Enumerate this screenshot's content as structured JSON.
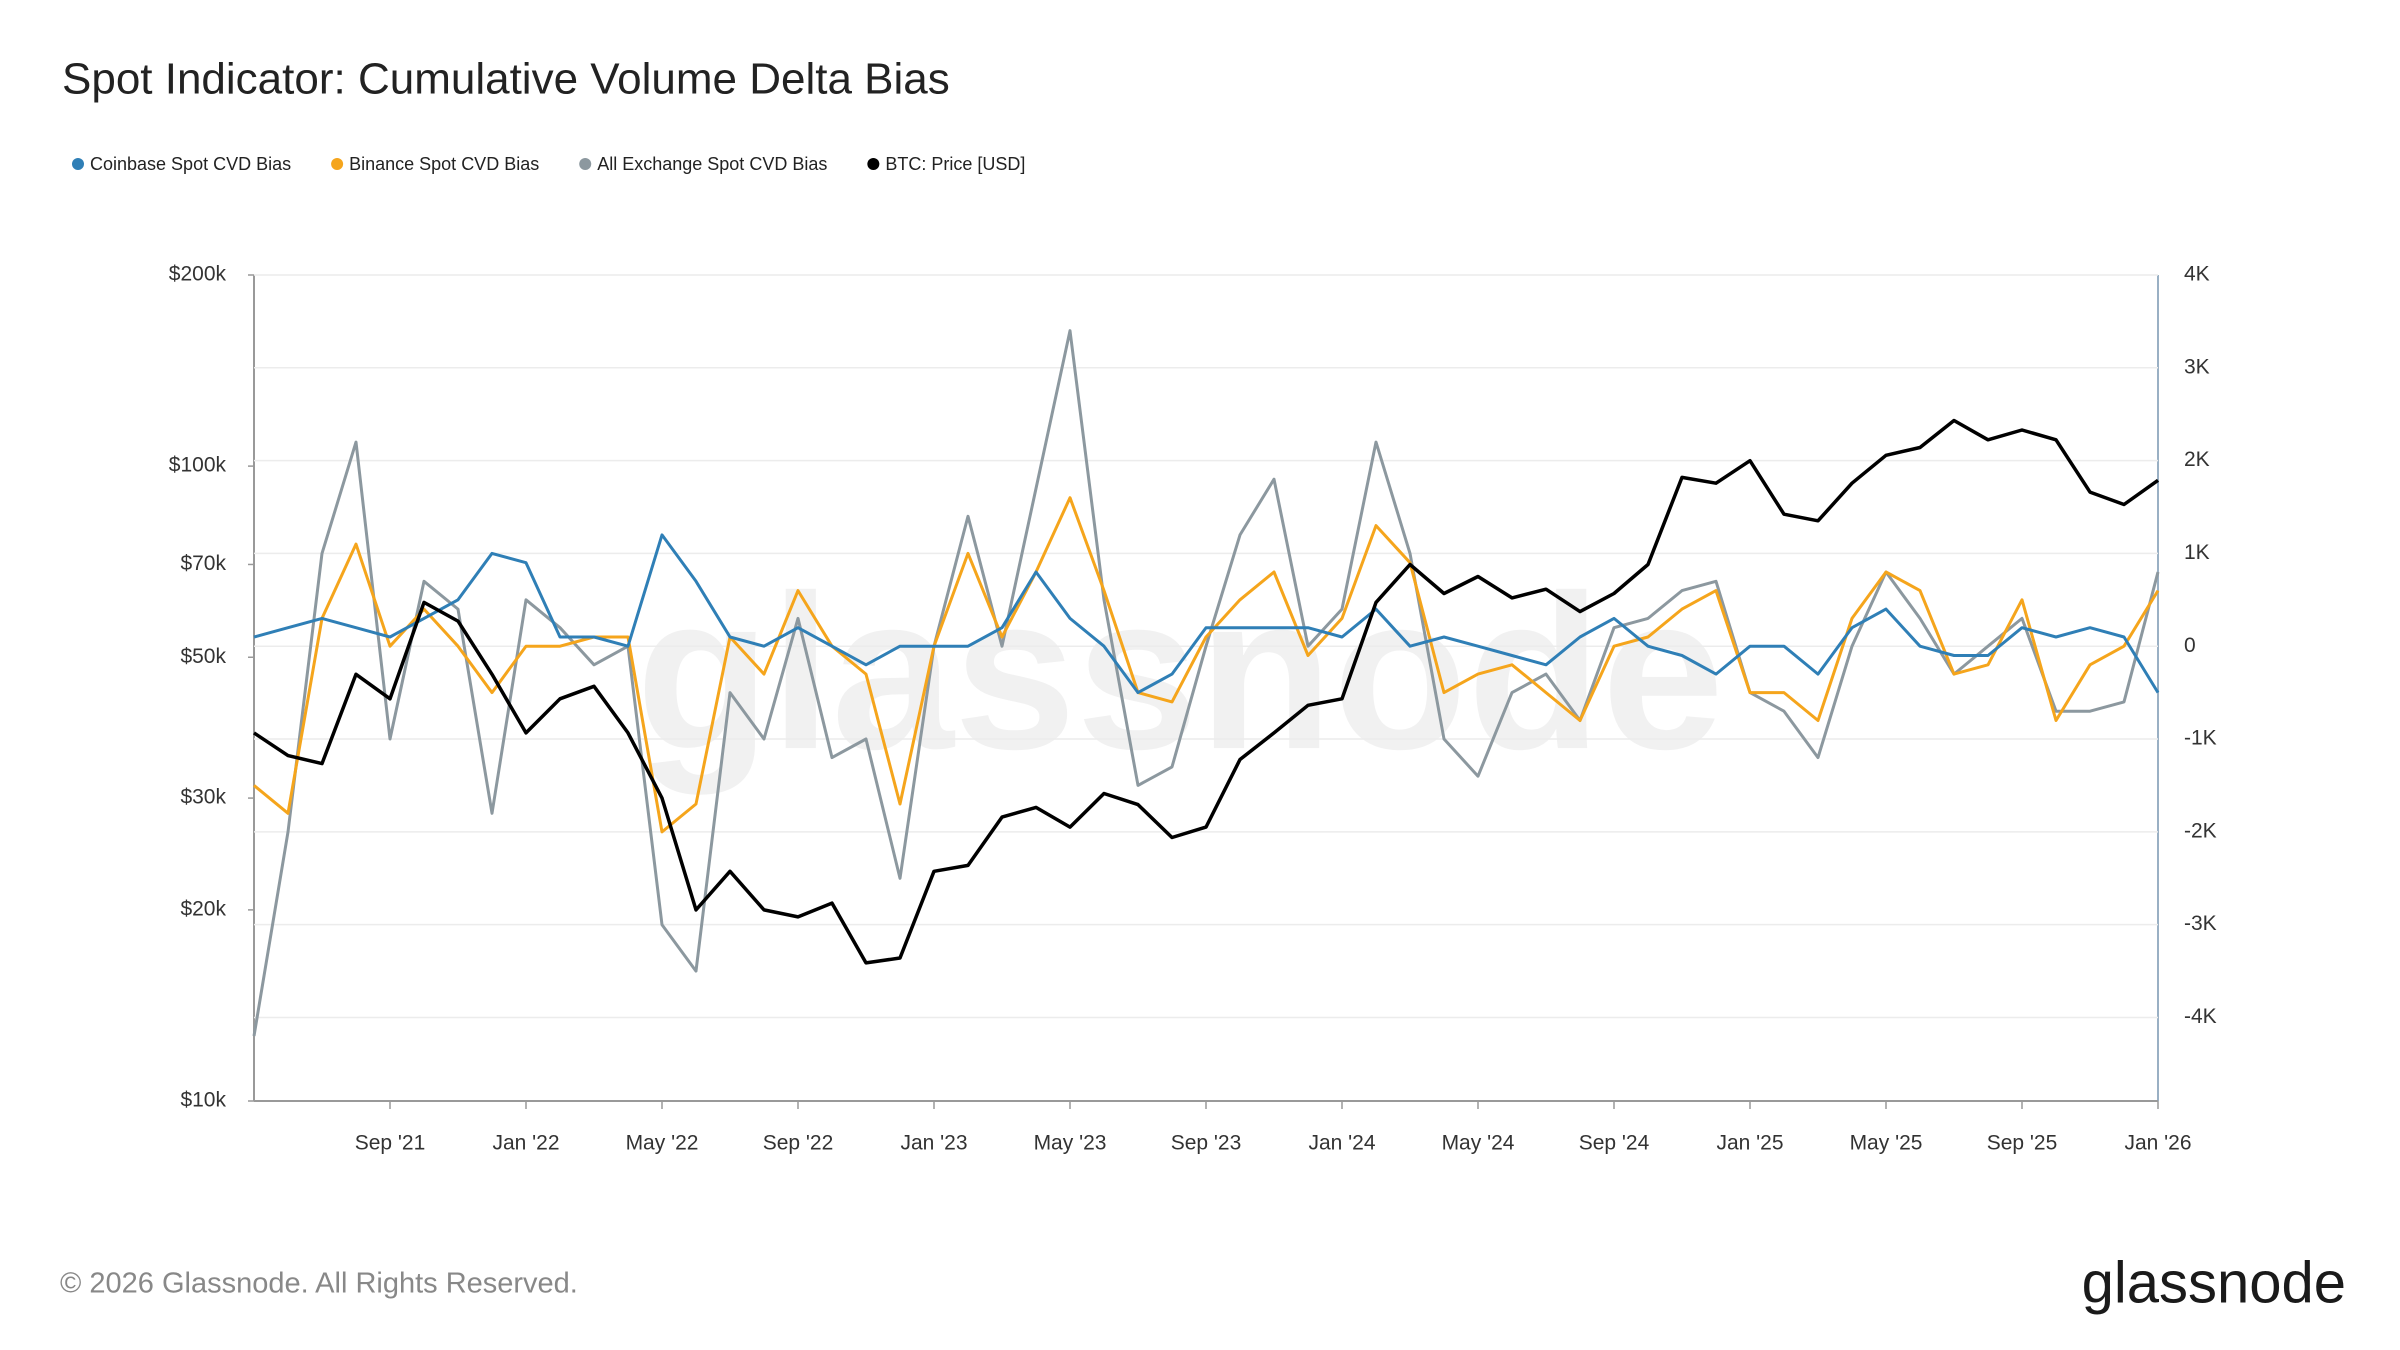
{
  "chart_data": {
    "type": "line",
    "title": "Spot Indicator: Cumulative Volume Delta Bias",
    "footer": "© 2026 Glassnode. All Rights Reserved.",
    "logo": "glassnode",
    "watermark": "glassnode",
    "x": [
      "2021-05",
      "2021-06",
      "2021-07",
      "2021-08",
      "2021-09",
      "2021-10",
      "2021-11",
      "2021-12",
      "2022-01",
      "2022-02",
      "2022-03",
      "2022-04",
      "2022-05",
      "2022-06",
      "2022-07",
      "2022-08",
      "2022-09",
      "2022-10",
      "2022-11",
      "2022-12",
      "2023-01",
      "2023-02",
      "2023-03",
      "2023-04",
      "2023-05",
      "2023-06",
      "2023-07",
      "2023-08",
      "2023-09",
      "2023-10",
      "2023-11",
      "2023-12",
      "2024-01",
      "2024-02",
      "2024-03",
      "2024-04",
      "2024-05",
      "2024-06",
      "2024-07",
      "2024-08",
      "2024-09",
      "2024-10",
      "2024-11",
      "2024-12",
      "2025-01",
      "2025-02",
      "2025-03",
      "2025-04",
      "2025-05",
      "2025-06",
      "2025-07",
      "2025-08",
      "2025-09",
      "2025-10",
      "2025-11",
      "2025-12",
      "2026-01"
    ],
    "xlim": [
      "2021-05",
      "2026-01"
    ],
    "xticks": [
      {
        "value": "2021-09",
        "label": "Sep '21"
      },
      {
        "value": "2022-01",
        "label": "Jan '22"
      },
      {
        "value": "2022-05",
        "label": "May '22"
      },
      {
        "value": "2022-09",
        "label": "Sep '22"
      },
      {
        "value": "2023-01",
        "label": "Jan '23"
      },
      {
        "value": "2023-05",
        "label": "May '23"
      },
      {
        "value": "2023-09",
        "label": "Sep '23"
      },
      {
        "value": "2024-01",
        "label": "Jan '24"
      },
      {
        "value": "2024-05",
        "label": "May '24"
      },
      {
        "value": "2024-09",
        "label": "Sep '24"
      },
      {
        "value": "2025-01",
        "label": "Jan '25"
      },
      {
        "value": "2025-05",
        "label": "May '25"
      },
      {
        "value": "2025-09",
        "label": "Sep '25"
      },
      {
        "value": "2026-01",
        "label": "Jan '26"
      }
    ],
    "ylim": [
      10000,
      200000
    ],
    "ylog": true,
    "yticks": [
      {
        "value": 10000,
        "label": "$10k"
      },
      {
        "value": 20000,
        "label": "$20k"
      },
      {
        "value": 30000,
        "label": "$30k"
      },
      {
        "value": 50000,
        "label": "$50k"
      },
      {
        "value": 70000,
        "label": "$70k"
      },
      {
        "value": 100000,
        "label": "$100k"
      },
      {
        "value": 200000,
        "label": "$200k"
      }
    ],
    "y2lim": [
      -4900,
      4000
    ],
    "y2ticks": [
      {
        "value": 4000,
        "label": "4K"
      },
      {
        "value": 3000,
        "label": "3K"
      },
      {
        "value": 2000,
        "label": "2K"
      },
      {
        "value": 1000,
        "label": "1K"
      },
      0,
      {
        "value": -1000,
        "label": "-1K"
      },
      {
        "value": -2000,
        "label": "-2K"
      },
      {
        "value": -3000,
        "label": "-3K"
      },
      {
        "value": -4000,
        "label": "-4K"
      }
    ],
    "grid": true,
    "series": [
      {
        "name": "Coinbase Spot CVD Bias",
        "color": "#2f7fb6",
        "axis": "y2",
        "values": [
          100,
          200,
          300,
          200,
          100,
          300,
          500,
          1000,
          900,
          100,
          100,
          0,
          1200,
          700,
          100,
          0,
          200,
          0,
          -200,
          0,
          0,
          0,
          200,
          800,
          300,
          0,
          -500,
          -300,
          200,
          200,
          200,
          200,
          100,
          400,
          0,
          100,
          0,
          -100,
          -200,
          100,
          300,
          0,
          -100,
          -300,
          0,
          0,
          -300,
          200,
          400,
          0,
          -100,
          -100,
          200,
          100,
          200,
          100,
          -500
        ]
      },
      {
        "name": "Binance Spot CVD Bias",
        "color": "#f5a51c",
        "axis": "y2",
        "values": [
          -1500,
          -1800,
          300,
          1100,
          0,
          400,
          0,
          -500,
          0,
          0,
          100,
          100,
          -2000,
          -1700,
          100,
          -300,
          600,
          0,
          -300,
          -1700,
          0,
          1000,
          100,
          800,
          1600,
          600,
          -500,
          -600,
          100,
          500,
          800,
          -100,
          300,
          1300,
          900,
          -500,
          -300,
          -200,
          -500,
          -800,
          0,
          100,
          400,
          600,
          -500,
          -500,
          -800,
          300,
          800,
          600,
          -300,
          -200,
          500,
          -800,
          -200,
          0,
          600
        ]
      },
      {
        "name": "All Exchange Spot CVD Bias",
        "color": "#8c989f",
        "axis": "y2",
        "values": [
          -4200,
          -2000,
          1000,
          2200,
          -1000,
          700,
          400,
          -1800,
          500,
          200,
          -200,
          0,
          -3000,
          -3500,
          -500,
          -1000,
          300,
          -1200,
          -1000,
          -2500,
          0,
          1400,
          0,
          1700,
          3400,
          500,
          -1500,
          -1300,
          0,
          1200,
          1800,
          0,
          400,
          2200,
          1000,
          -1000,
          -1400,
          -500,
          -300,
          -800,
          200,
          300,
          600,
          700,
          -500,
          -700,
          -1200,
          0,
          800,
          300,
          -300,
          0,
          300,
          -700,
          -700,
          -600,
          800
        ]
      },
      {
        "name": "BTC: Price [USD]",
        "color": "#000000",
        "values": [
          38000,
          35000,
          34000,
          47000,
          43000,
          61000,
          57000,
          47000,
          38000,
          43000,
          45000,
          38000,
          30000,
          20000,
          23000,
          20000,
          19500,
          20500,
          16500,
          16800,
          23000,
          23500,
          28000,
          29000,
          27000,
          30500,
          29300,
          26000,
          27000,
          34500,
          38000,
          42000,
          43000,
          61000,
          70000,
          63000,
          67000,
          62000,
          64000,
          59000,
          63000,
          70000,
          96000,
          94000,
          102000,
          84000,
          82000,
          94000,
          104000,
          107000,
          118000,
          110000,
          114000,
          110000,
          91000,
          87000,
          95000
        ]
      }
    ]
  }
}
